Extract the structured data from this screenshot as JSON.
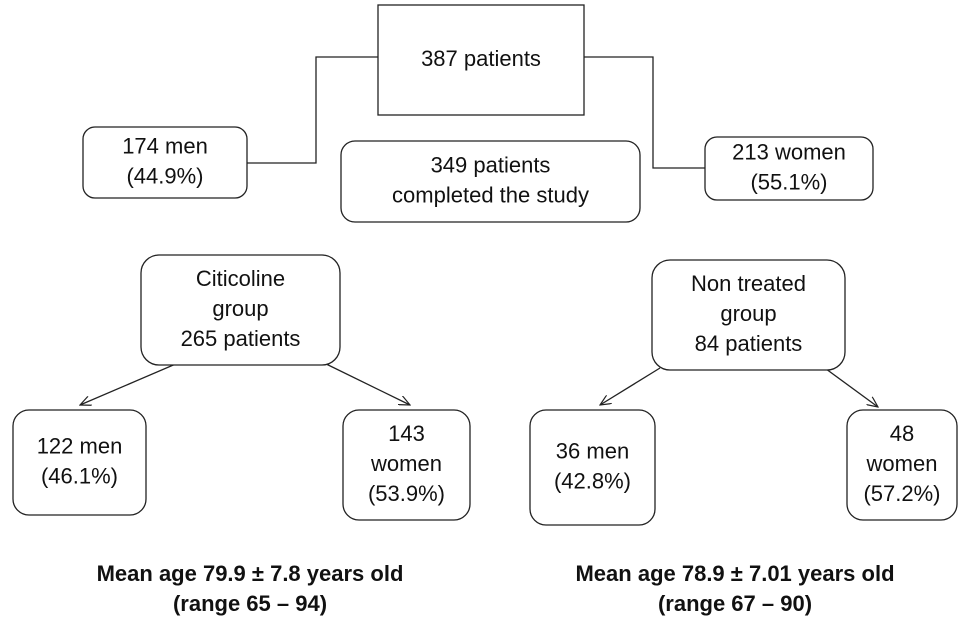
{
  "nodes": [
    {
      "lines": [
        "387 patients"
      ]
    },
    {
      "lines": [
        "174 men",
        "(44.9%)"
      ]
    },
    {
      "lines": [
        "349 patients",
        "completed the study"
      ]
    },
    {
      "lines": [
        "213 women",
        "(55.1%)"
      ]
    },
    {
      "lines": [
        "Citicoline",
        "group",
        "265 patients"
      ]
    },
    {
      "lines": [
        "Non treated",
        "group",
        "84 patients"
      ]
    },
    {
      "lines": [
        "122 men",
        "(46.1%)"
      ]
    },
    {
      "lines": [
        "143",
        "women",
        "(53.9%)"
      ]
    },
    {
      "lines": [
        "36 men",
        "(42.8%)"
      ]
    },
    {
      "lines": [
        "48",
        "women",
        "(57.2%)"
      ]
    }
  ],
  "captions": [
    {
      "lines": [
        "Mean age 79.9 ± 7.8 years old",
        "(range 65 – 94)"
      ]
    },
    {
      "lines": [
        "Mean age 78.9 ± 7.01 years old",
        "(range 67 – 90)"
      ]
    }
  ]
}
